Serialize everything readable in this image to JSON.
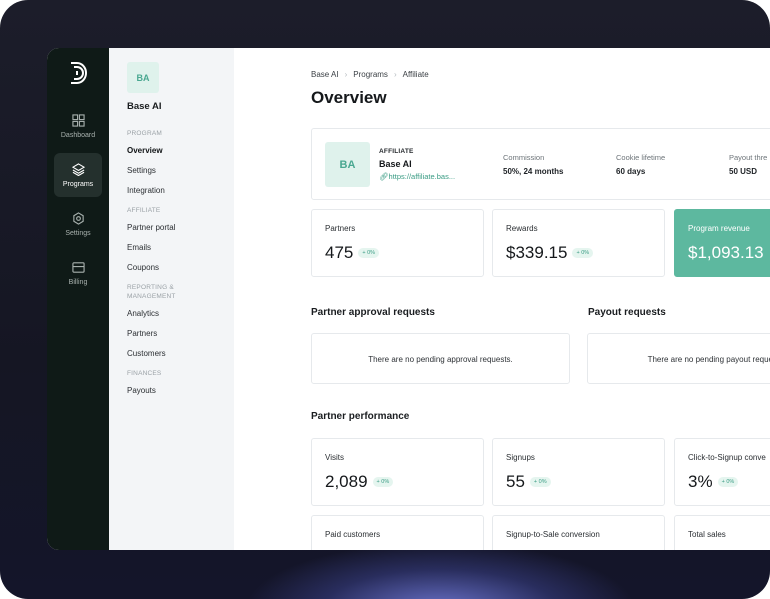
{
  "rail": {
    "items": [
      {
        "label": "Dashboard",
        "icon": "dashboard-grid-icon"
      },
      {
        "label": "Programs",
        "icon": "layers-icon",
        "active": true
      },
      {
        "label": "Settings",
        "icon": "gear-icon"
      },
      {
        "label": "Billing",
        "icon": "billing-card-icon"
      }
    ]
  },
  "subnav": {
    "avatar": "BA",
    "title": "Base AI",
    "program_label": "PROGRAM",
    "program_items": [
      "Overview",
      "Settings",
      "Integration"
    ],
    "affiliate_label": "AFFILIATE",
    "affiliate_items": [
      "Partner portal",
      "Emails",
      "Coupons"
    ],
    "reporting_label_1": "REPORTING &",
    "reporting_label_2": "MANAGEMENT",
    "reporting_items": [
      "Analytics",
      "Partners",
      "Customers"
    ],
    "finances_label": "FINANCES",
    "finances_items": [
      "Payouts"
    ]
  },
  "breadcrumb": [
    "Base AI",
    "Programs",
    "Affiliate"
  ],
  "page_title": "Overview",
  "affiliate_card": {
    "avatar": "BA",
    "tag": "AFFILIATE",
    "name": "Base AI",
    "link": "https://affiliate.bas...",
    "commission_label": "Commission",
    "commission_value": "50%, 24 months",
    "cookie_label": "Cookie lifetime",
    "cookie_value": "60 days",
    "payout_label": "Payout thre",
    "payout_value": "50 USD"
  },
  "stats": [
    {
      "label": "Partners",
      "value": "475",
      "change": "+ 0%"
    },
    {
      "label": "Rewards",
      "value": "$339.15",
      "change": "+ 0%"
    },
    {
      "label": "Program revenue",
      "value": "$1,093.13"
    }
  ],
  "approval": {
    "heading": "Partner approval requests",
    "empty": "There are no pending approval requests."
  },
  "payout": {
    "heading": "Payout requests",
    "empty": "There are no pending payout requests."
  },
  "performance": {
    "heading": "Partner performance",
    "cards": [
      {
        "label": "Visits",
        "value": "2,089",
        "change": "+ 0%"
      },
      {
        "label": "Signups",
        "value": "55",
        "change": "+ 0%"
      },
      {
        "label": "Click-to-Signup conve",
        "value": "3%",
        "change": "+ 0%"
      },
      {
        "label": "Paid customers"
      },
      {
        "label": "Signup-to-Sale conversion"
      },
      {
        "label": "Total sales"
      }
    ]
  },
  "colors": {
    "accent": "#5db89f",
    "rail": "#0f1a17",
    "subnav": "#f3f5f7"
  }
}
